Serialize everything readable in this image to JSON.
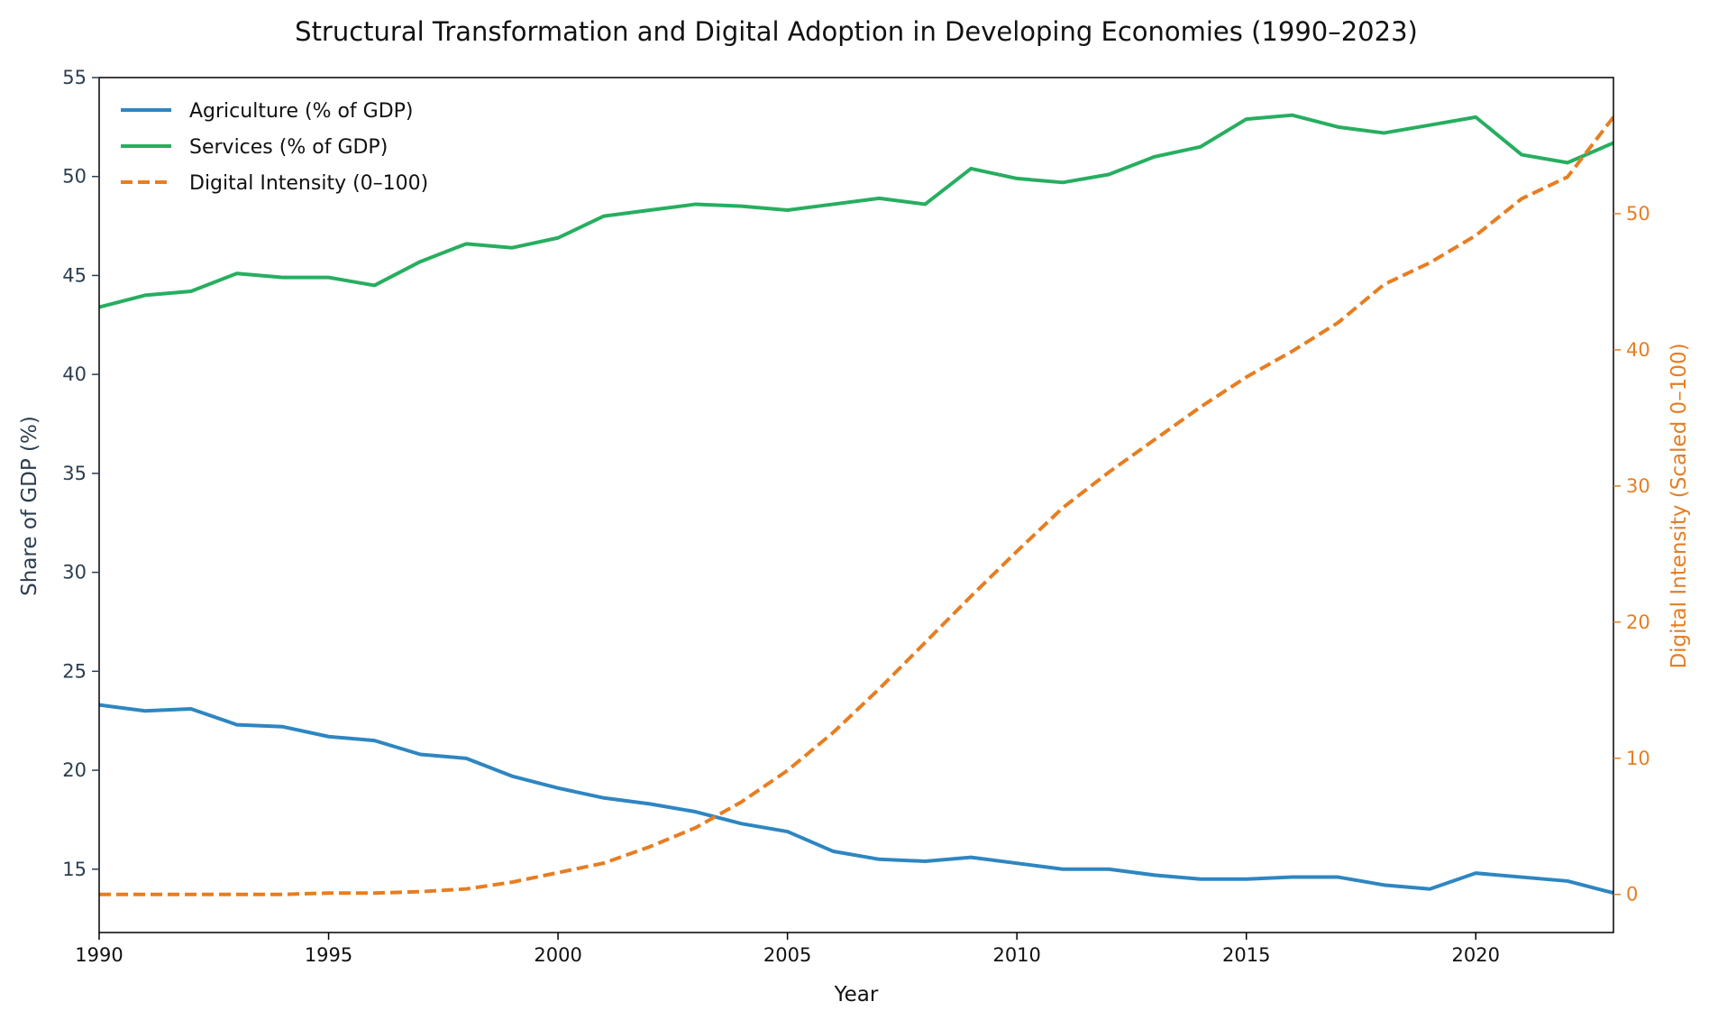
{
  "chart_data": {
    "type": "line",
    "title": "Structural Transformation and Digital Adoption in Developing Economies (1990–2023)",
    "xlabel": "Year",
    "ylabel": "Share of GDP (%)",
    "ylabel_right": "Digital Intensity (Scaled 0–100)",
    "xlim": [
      1990,
      2023
    ],
    "ylim": [
      11.8,
      55
    ],
    "ylim_right": [
      -2.8,
      60
    ],
    "x_ticks": [
      1990,
      1995,
      2000,
      2005,
      2010,
      2015,
      2020
    ],
    "y_ticks": [
      15,
      20,
      25,
      30,
      35,
      40,
      45,
      50,
      55
    ],
    "y_ticks_right": [
      0,
      10,
      20,
      30,
      40,
      50
    ],
    "grid": false,
    "legend_position": "top-left",
    "x": [
      1990,
      1991,
      1992,
      1993,
      1994,
      1995,
      1996,
      1997,
      1998,
      1999,
      2000,
      2001,
      2002,
      2003,
      2004,
      2005,
      2006,
      2007,
      2008,
      2009,
      2010,
      2011,
      2012,
      2013,
      2014,
      2015,
      2016,
      2017,
      2018,
      2019,
      2020,
      2021,
      2022,
      2023
    ],
    "series": [
      {
        "name": "Agriculture (% of GDP)",
        "axis": "left",
        "color": "#2e86c1",
        "style": "solid",
        "values": [
          23.3,
          23.0,
          23.1,
          22.3,
          22.2,
          21.7,
          21.5,
          20.8,
          20.6,
          19.7,
          19.1,
          18.6,
          18.3,
          17.9,
          17.3,
          16.9,
          15.9,
          15.5,
          15.4,
          15.6,
          15.3,
          15.0,
          15.0,
          14.7,
          14.5,
          14.5,
          14.6,
          14.6,
          14.2,
          14.0,
          14.8,
          14.6,
          14.4,
          13.8
        ]
      },
      {
        "name": "Services (% of GDP)",
        "axis": "left",
        "color": "#27ae60",
        "style": "solid",
        "values": [
          43.4,
          44.0,
          44.2,
          45.1,
          44.9,
          44.9,
          44.5,
          45.7,
          46.6,
          46.4,
          46.9,
          48.0,
          48.3,
          48.6,
          48.5,
          48.3,
          48.6,
          48.9,
          48.6,
          50.4,
          49.9,
          49.7,
          50.1,
          51.0,
          51.5,
          52.9,
          53.1,
          52.5,
          52.2,
          52.6,
          53.0,
          51.1,
          50.7,
          51.7
        ]
      },
      {
        "name": "Digital Intensity (0–100)",
        "axis": "right",
        "color": "#e67e22",
        "style": "dashed",
        "values": [
          0.0,
          0.0,
          0.0,
          0.0,
          0.0,
          0.1,
          0.1,
          0.2,
          0.4,
          0.9,
          1.6,
          2.3,
          3.5,
          4.9,
          6.8,
          9.1,
          11.9,
          15.1,
          18.5,
          21.9,
          25.2,
          28.4,
          31.0,
          33.4,
          35.8,
          38.0,
          39.9,
          42.0,
          44.8,
          46.4,
          48.4,
          51.1,
          52.7,
          57.1
        ]
      }
    ]
  }
}
